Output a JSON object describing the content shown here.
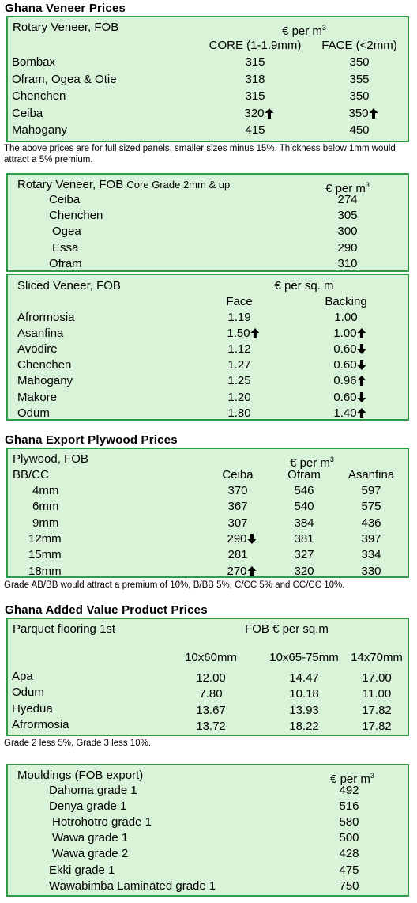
{
  "veneer": {
    "title": "Ghana Veneer Prices",
    "rotary_fob": {
      "label": "Rotary Veneer, FOB",
      "unit": "€ per m",
      "unit_sup": "3",
      "columns": [
        "CORE (1-1.9mm)",
        "FACE (<2mm)"
      ],
      "rows": [
        {
          "name": "Bombax",
          "core": "315",
          "face": "350"
        },
        {
          "name": "Ofram, Ogea  & Otie",
          "core": "318",
          "face": "355"
        },
        {
          "name": "Chenchen",
          "core": "315",
          "face": "350"
        },
        {
          "name": "Ceiba",
          "core": "320",
          "core_trend": "up",
          "face": "350",
          "face_trend": "up"
        },
        {
          "name": "Mahogany",
          "core": "415",
          "face": "450"
        }
      ],
      "note": "The above prices are for full sized panels, smaller sizes minus 15%. Thickness below 1mm would attract a 5% premium."
    },
    "rotary_core": {
      "label": "Rotary Veneer, FOB",
      "label_small": "Core Grade 2mm & up",
      "unit": "€ per m",
      "unit_sup": "3",
      "rows": [
        {
          "name": "Ceiba",
          "value": "274"
        },
        {
          "name": "Chenchen",
          "value": "305"
        },
        {
          "name": "Ogea",
          "value": "300"
        },
        {
          "name": "Essa",
          "value": "290"
        },
        {
          "name": "Ofram",
          "value": "310"
        }
      ]
    },
    "sliced": {
      "label": "Sliced Veneer, FOB",
      "unit": "€ per sq. m",
      "columns": [
        "Face",
        "Backing"
      ],
      "rows": [
        {
          "name": "Afrormosia",
          "face": "1.19",
          "backing": "1.00"
        },
        {
          "name": "Asanfina",
          "face": "1.50",
          "face_trend": "up",
          "backing": "1.00",
          "backing_trend": "up"
        },
        {
          "name": "Avodire",
          "face": "1.12",
          "backing": "0.60",
          "backing_trend": "down"
        },
        {
          "name": "Chenchen",
          "face": "1.27",
          "backing": "0.60",
          "backing_trend": "down"
        },
        {
          "name": "Mahogany",
          "face": "1.25",
          "backing": "0.96",
          "backing_trend": "up"
        },
        {
          "name": "Makore",
          "face": "1.20",
          "backing": "0.60",
          "backing_trend": "down"
        },
        {
          "name": "Odum",
          "face": "1.80",
          "backing": "1.40",
          "backing_trend": "up"
        }
      ]
    }
  },
  "plywood": {
    "title": "Ghana Export Plywood Prices",
    "label": "Plywood, FOB",
    "grade": "BB/CC",
    "unit": "€ per m",
    "unit_sup": "3",
    "columns": [
      "Ceiba",
      "Ofram",
      "Asanfina"
    ],
    "rows": [
      {
        "name": "4mm",
        "ceiba": "370",
        "ofram": "546",
        "asanfina": "597"
      },
      {
        "name": "6mm",
        "ceiba": "367",
        "ofram": "540",
        "asanfina": "575"
      },
      {
        "name": "9mm",
        "ceiba": "307",
        "ofram": "384",
        "asanfina": "436"
      },
      {
        "name": "12mm",
        "ceiba": "290",
        "ceiba_trend": "down",
        "ofram": "381",
        "asanfina": "397"
      },
      {
        "name": "15mm",
        "ceiba": "281",
        "ofram": "327",
        "asanfina": "334"
      },
      {
        "name": "18mm",
        "ceiba": "270",
        "ceiba_trend": "up",
        "ofram": "320",
        "asanfina": "330"
      }
    ],
    "note": "Grade AB/BB would attract a premium of 10%, B/BB 5%, C/CC 5% and CC/CC 10%."
  },
  "added_value": {
    "title": "Ghana Added Value Product Prices",
    "parquet": {
      "label": "Parquet flooring 1st",
      "unit": "FOB € per sq.m",
      "columns": [
        "10x60mm",
        "10x65-75mm",
        "14x70mm"
      ],
      "rows": [
        {
          "name": "Apa",
          "v1": "12.00",
          "v2": "14.47",
          "v3": "17.00"
        },
        {
          "name": "Odum",
          "v1": "7.80",
          "v2": "10.18",
          "v3": "11.00"
        },
        {
          "name": "Hyedua",
          "v1": "13.67",
          "v2": "13.93",
          "v3": "17.82"
        },
        {
          "name": "Afrormosia",
          "v1": "13.72",
          "v2": "18.22",
          "v3": "17.82"
        }
      ],
      "note": "Grade 2 less 5%, Grade 3 less 10%."
    },
    "mouldings": {
      "label": "Mouldings (FOB export)",
      "unit": "€ per m",
      "unit_sup": "3",
      "rows": [
        {
          "name": "Dahoma grade 1",
          "value": "492"
        },
        {
          "name": "Denya grade 1",
          "value": "516"
        },
        {
          "name": "Hotrohotro grade 1",
          "value": "580"
        },
        {
          "name": "Wawa grade 1",
          "value": "500"
        },
        {
          "name": "Wawa grade 2",
          "value": "428"
        },
        {
          "name": "Ekki grade 1",
          "value": "475"
        },
        {
          "name": "Wawabimba Laminated grade 1",
          "value": "750"
        }
      ]
    }
  },
  "trend_icons": {
    "up": "arrow-up-icon",
    "down": "arrow-down-icon"
  },
  "colors": {
    "panel_bg": "#d8f3d8",
    "panel_border": "#2f9a4a"
  }
}
